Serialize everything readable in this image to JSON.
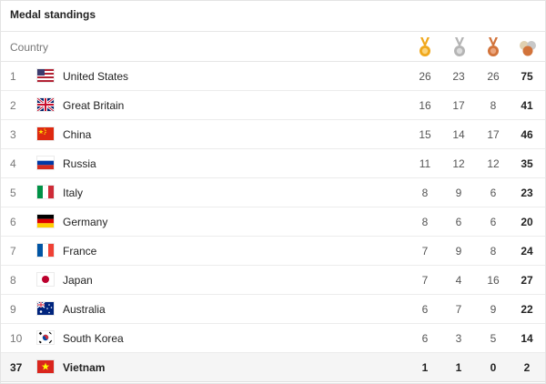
{
  "title": "Medal standings",
  "columns": {
    "country": "Country",
    "gold_icon": "gold-medal-icon",
    "silver_icon": "silver-medal-icon",
    "bronze_icon": "bronze-medal-icon",
    "total_icon": "total-medals-icon"
  },
  "colors": {
    "gold": "#f0a81c",
    "silver": "#b4b4b4",
    "bronze": "#d2733a",
    "header_border": "#e6e6e6",
    "highlight_row": "#f5f5f5"
  },
  "rows": [
    {
      "rank": "1",
      "country": "United States",
      "flag": "us-flag-icon",
      "gold": "26",
      "silver": "23",
      "bronze": "26",
      "total": "75"
    },
    {
      "rank": "2",
      "country": "Great Britain",
      "flag": "gb-flag-icon",
      "gold": "16",
      "silver": "17",
      "bronze": "8",
      "total": "41"
    },
    {
      "rank": "3",
      "country": "China",
      "flag": "cn-flag-icon",
      "gold": "15",
      "silver": "14",
      "bronze": "17",
      "total": "46"
    },
    {
      "rank": "4",
      "country": "Russia",
      "flag": "ru-flag-icon",
      "gold": "11",
      "silver": "12",
      "bronze": "12",
      "total": "35"
    },
    {
      "rank": "5",
      "country": "Italy",
      "flag": "it-flag-icon",
      "gold": "8",
      "silver": "9",
      "bronze": "6",
      "total": "23"
    },
    {
      "rank": "6",
      "country": "Germany",
      "flag": "de-flag-icon",
      "gold": "8",
      "silver": "6",
      "bronze": "6",
      "total": "20"
    },
    {
      "rank": "7",
      "country": "France",
      "flag": "fr-flag-icon",
      "gold": "7",
      "silver": "9",
      "bronze": "8",
      "total": "24"
    },
    {
      "rank": "8",
      "country": "Japan",
      "flag": "jp-flag-icon",
      "gold": "7",
      "silver": "4",
      "bronze": "16",
      "total": "27"
    },
    {
      "rank": "9",
      "country": "Australia",
      "flag": "au-flag-icon",
      "gold": "6",
      "silver": "7",
      "bronze": "9",
      "total": "22"
    },
    {
      "rank": "10",
      "country": "South Korea",
      "flag": "kr-flag-icon",
      "gold": "6",
      "silver": "3",
      "bronze": "5",
      "total": "14"
    },
    {
      "rank": "37",
      "country": "Vietnam",
      "flag": "vn-flag-icon",
      "gold": "1",
      "silver": "1",
      "bronze": "0",
      "total": "2",
      "highlighted": true
    }
  ]
}
